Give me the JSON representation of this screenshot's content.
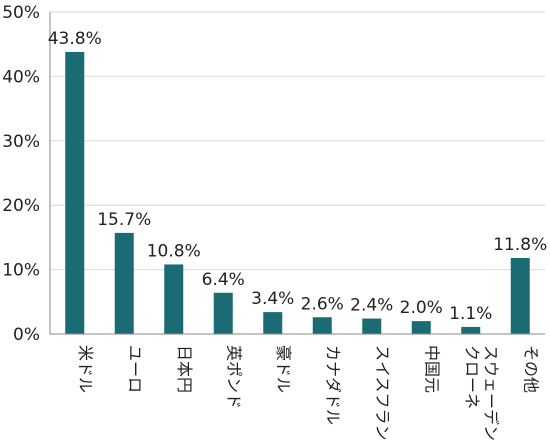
{
  "chart_data": {
    "type": "bar",
    "title": "",
    "xlabel": "",
    "ylabel": "",
    "ylim": [
      0,
      50
    ],
    "grid": true,
    "legend": "none",
    "categories": [
      "米ドル",
      "ユーロ",
      "日本円",
      "英ポンド",
      "豪ドル",
      "カナダドル",
      "スイスフラン",
      "中国元",
      "スウェーデン\nクローネ",
      "その他"
    ],
    "values": [
      43.8,
      15.7,
      10.8,
      6.4,
      3.4,
      2.6,
      2.4,
      2.0,
      1.1,
      11.8
    ],
    "data_labels": [
      "43.8%",
      "15.7%",
      "10.8%",
      "6.4%",
      "3.4%",
      "2.6%",
      "2.4%",
      "2.0%",
      "1.1%",
      "11.8%"
    ],
    "yticks": [
      0,
      10,
      20,
      30,
      40,
      50
    ],
    "ytick_labels": [
      "0%",
      "10%",
      "20%",
      "30%",
      "40%",
      "50%"
    ],
    "bar_color": "#1a6b73",
    "grid_color": "#d9d9d9",
    "axis_color": "#888888"
  }
}
